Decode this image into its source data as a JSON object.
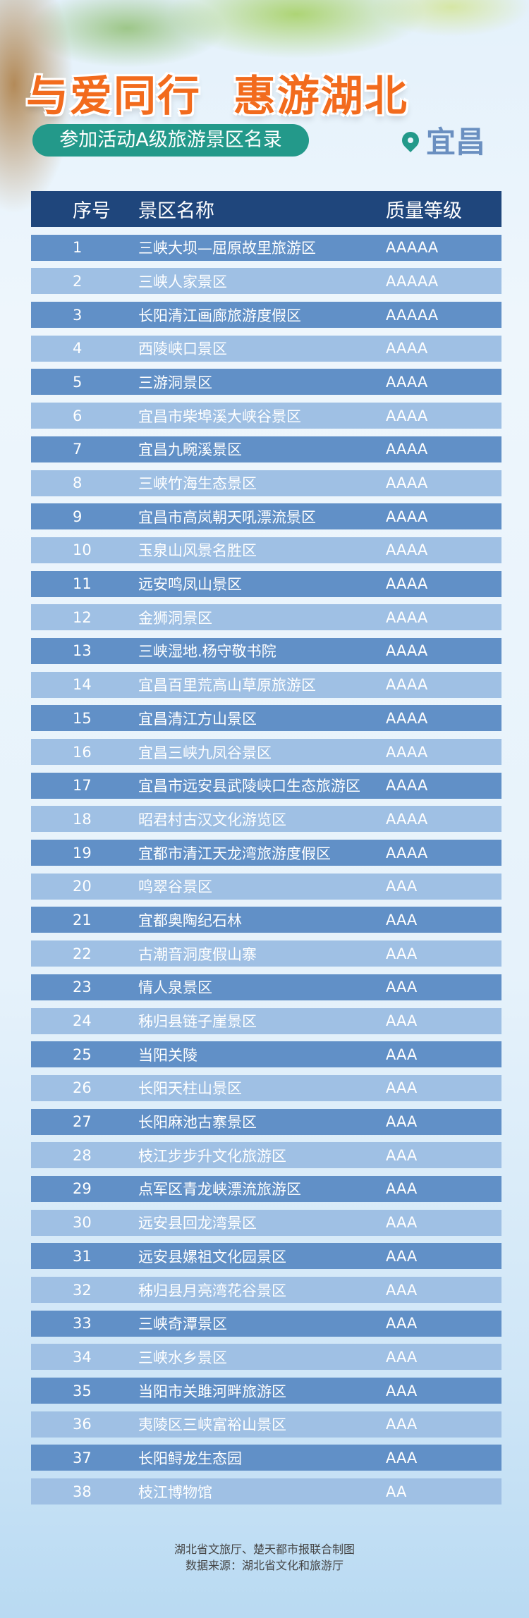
{
  "title": "与爱同行  惠游湖北",
  "subtitle": "参加活动A级旅游景区名录",
  "city": "宜昌",
  "table": {
    "headers": [
      "序号",
      "景区名称",
      "质量等级"
    ],
    "rows": [
      [
        "1",
        "三峡大坝—屈原故里旅游区",
        "AAAAA"
      ],
      [
        "2",
        "三峡人家景区",
        "AAAAA"
      ],
      [
        "3",
        "长阳清江画廊旅游度假区",
        "AAAAA"
      ],
      [
        "4",
        "西陵峡口景区",
        "AAAA"
      ],
      [
        "5",
        "三游洞景区",
        "AAAA"
      ],
      [
        "6",
        "宜昌市柴埠溪大峡谷景区",
        "AAAA"
      ],
      [
        "7",
        "宜昌九畹溪景区",
        "AAAA"
      ],
      [
        "8",
        "三峡竹海生态景区",
        "AAAA"
      ],
      [
        "9",
        "宜昌市高岚朝天吼漂流景区",
        "AAAA"
      ],
      [
        "10",
        "玉泉山风景名胜区",
        "AAAA"
      ],
      [
        "11",
        "远安鸣凤山景区",
        "AAAA"
      ],
      [
        "12",
        "金狮洞景区",
        "AAAA"
      ],
      [
        "13",
        "三峡湿地.杨守敬书院",
        "AAAA"
      ],
      [
        "14",
        "宜昌百里荒高山草原旅游区",
        "AAAA"
      ],
      [
        "15",
        "宜昌清江方山景区",
        "AAAA"
      ],
      [
        "16",
        "宜昌三峡九凤谷景区",
        "AAAA"
      ],
      [
        "17",
        "宜昌市远安县武陵峡口生态旅游区",
        "AAAA"
      ],
      [
        "18",
        "昭君村古汉文化游览区",
        "AAAA"
      ],
      [
        "19",
        "宜都市清江天龙湾旅游度假区",
        "AAAA"
      ],
      [
        "20",
        "鸣翠谷景区",
        "AAA"
      ],
      [
        "21",
        "宜都奥陶纪石林",
        "AAA"
      ],
      [
        "22",
        "古潮音洞度假山寨",
        "AAA"
      ],
      [
        "23",
        "情人泉景区",
        "AAA"
      ],
      [
        "24",
        "秭归县链子崖景区",
        "AAA"
      ],
      [
        "25",
        "当阳关陵",
        "AAA"
      ],
      [
        "26",
        "长阳天柱山景区",
        "AAA"
      ],
      [
        "27",
        "长阳麻池古寨景区",
        "AAA"
      ],
      [
        "28",
        "枝江步步升文化旅游区",
        "AAA"
      ],
      [
        "29",
        "点军区青龙峡漂流旅游区",
        "AAA"
      ],
      [
        "30",
        "远安县回龙湾景区",
        "AAA"
      ],
      [
        "31",
        "远安县嫘祖文化园景区",
        "AAA"
      ],
      [
        "32",
        "秭归县月亮湾花谷景区",
        "AAA"
      ],
      [
        "33",
        "三峡奇潭景区",
        "AAA"
      ],
      [
        "34",
        "三峡水乡景区",
        "AAA"
      ],
      [
        "35",
        "当阳市关雎河畔旅游区",
        "AAA"
      ],
      [
        "36",
        "夷陵区三峡富裕山景区",
        "AAA"
      ],
      [
        "37",
        "长阳鲟龙生态园",
        "AAA"
      ],
      [
        "38",
        "枝江博物馆",
        "AA"
      ]
    ]
  },
  "footer": {
    "credit": "湖北省文旅厅、楚天都市报联合制图",
    "source": "数据来源：湖北省文化和旅游厅"
  },
  "colors": {
    "title": "#f26b1d",
    "pill": "#23998a",
    "header": "#1f467c",
    "row_dark": "#6190c7",
    "row_light": "#9fc0e4",
    "city": "#6a8fc0"
  }
}
